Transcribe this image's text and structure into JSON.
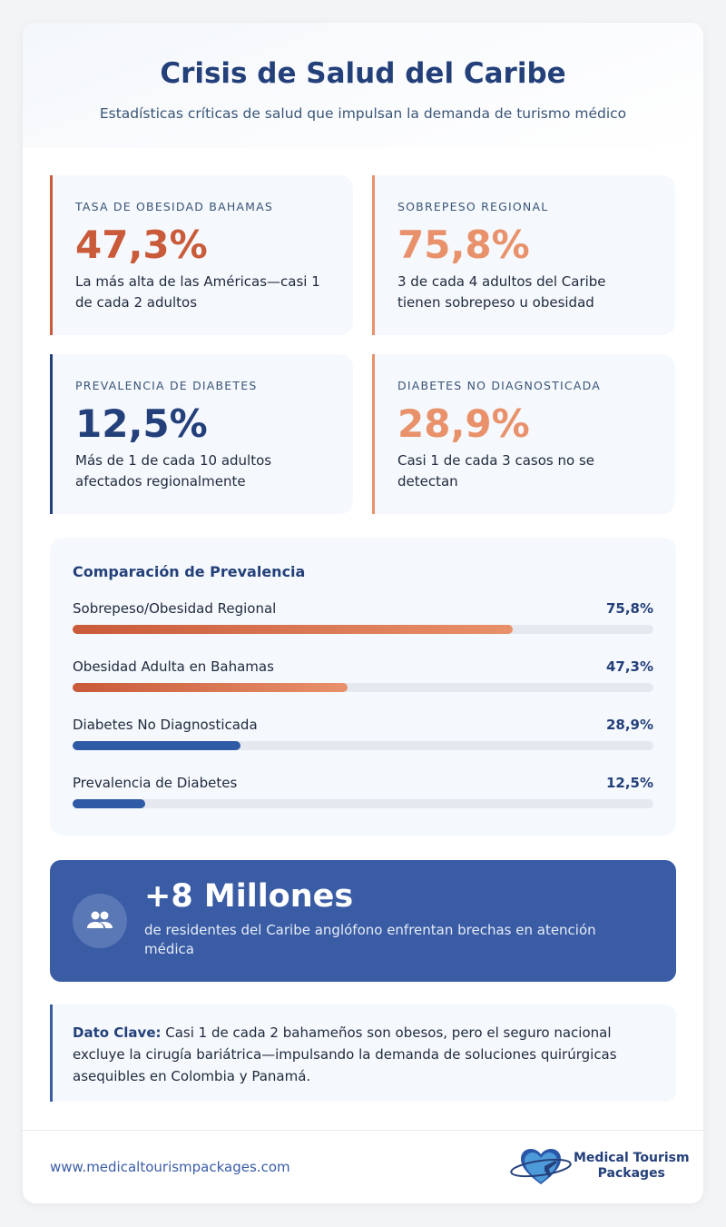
{
  "header": {
    "title": "Crisis de Salud del Caribe",
    "subtitle": "Estadísticas críticas de salud que impulsan la demanda de turismo médico"
  },
  "stats": [
    {
      "label": "TASA DE OBESIDAD BAHAMAS",
      "value": "47,3%",
      "desc": "La más alta de las Américas—casi 1 de cada 2 adultos",
      "color": "#c95a3a"
    },
    {
      "label": "SOBREPESO REGIONAL",
      "value": "75,8%",
      "desc": "3 de cada 4 adultos del Caribe tienen sobrepeso u obesidad",
      "color": "#e8916a"
    },
    {
      "label": "PREVALENCIA DE DIABETES",
      "value": "12,5%",
      "desc": "Más de 1 de cada 10 adultos afectados regionalmente",
      "color": "#24407a"
    },
    {
      "label": "DIABETES NO DIAGNOSTICADA",
      "value": "28,9%",
      "desc": "Casi 1 de cada 3 casos no se detectan",
      "color": "#e8916a"
    }
  ],
  "comparison": {
    "title": "Comparación de Prevalencia",
    "items": [
      {
        "name": "Sobrepeso/Obesidad Regional",
        "label": "75,8%",
        "value": 75.8,
        "type": "orange"
      },
      {
        "name": "Obesidad Adulta en Bahamas",
        "label": "47,3%",
        "value": 47.3,
        "type": "orange"
      },
      {
        "name": "Diabetes No Diagnosticada",
        "label": "28,9%",
        "value": 28.9,
        "type": "blue"
      },
      {
        "name": "Prevalencia de Diabetes",
        "label": "12,5%",
        "value": 12.5,
        "type": "blue"
      }
    ]
  },
  "banner": {
    "icon": "people-icon",
    "value": "+8 Millones",
    "desc": "de residentes del Caribe anglófono enfrentan brechas en atención médica"
  },
  "fact": {
    "label": "Dato Clave:",
    "text": " Casi 1 de cada 2 bahameños son obesos, pero el seguro nacional excluye la cirugía bariátrica—impulsando la demanda de soluciones quirúrgicas asequibles en Colombia y Panamá."
  },
  "footer": {
    "url": "www.medicaltourismpackages.com",
    "logo_line1": "Medical Tourism",
    "logo_line2": "Packages"
  }
}
